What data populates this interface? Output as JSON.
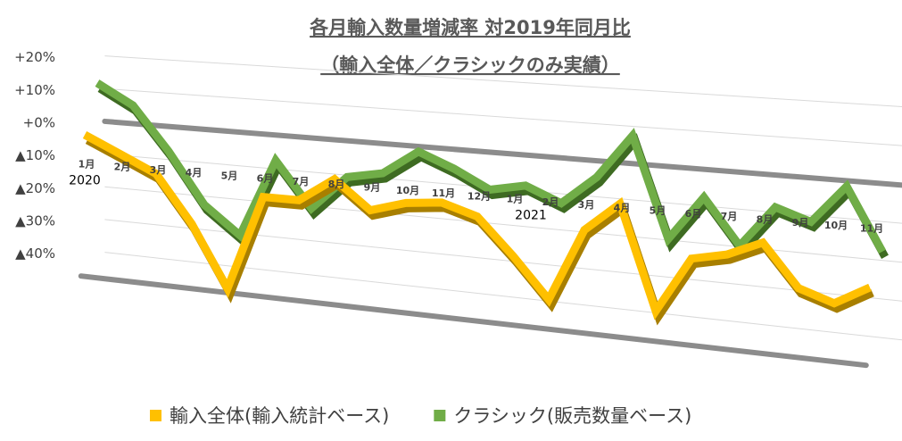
{
  "chart_data": {
    "type": "line3d",
    "title": "各月輸入数量増減率 対2019年同月比",
    "subtitle": "（輸入全体／クラシックのみ実績）",
    "categories": [
      "1月",
      "2月",
      "3月",
      "4月",
      "5月",
      "6月",
      "7月",
      "8月",
      "9月",
      "10月",
      "11月",
      "12月",
      "1月",
      "2月",
      "3月",
      "4月",
      "5月",
      "6月",
      "7月",
      "8月",
      "9月",
      "10月",
      "11月"
    ],
    "groups": [
      {
        "label": "2020",
        "count": 12
      },
      {
        "label": "2021",
        "count": 11
      }
    ],
    "series": [
      {
        "name": "輸入全体(輸入統計ベース)",
        "color": "#FFC000",
        "shade": "#A87F00",
        "values": [
          2,
          -3,
          -8,
          -22,
          -40,
          -12,
          -12,
          -5,
          -13,
          -10,
          -9,
          -12,
          -22,
          -33,
          -13,
          -5,
          -33,
          -18,
          -16,
          -12,
          -23,
          -26,
          -21
        ]
      },
      {
        "name": "クラシック(販売数量ベース)",
        "color": "#70AD47",
        "shade": "#3E6B22",
        "values": [
          14,
          8,
          -5,
          -20,
          -28,
          -5,
          -18,
          -8,
          -6,
          1,
          -3,
          -8,
          -6,
          -10,
          -2,
          10,
          -17,
          -5,
          -17,
          -6,
          -9,
          1,
          -15
        ]
      }
    ],
    "ylim": [
      -40,
      20
    ],
    "yticks": [
      {
        "value": 20,
        "label": "+20%"
      },
      {
        "value": 10,
        "label": "+10%"
      },
      {
        "value": 0,
        "label": "+0%"
      },
      {
        "value": -10,
        "label": "▲10%"
      },
      {
        "value": -20,
        "label": "▲20%"
      },
      {
        "value": -30,
        "label": "▲30%"
      },
      {
        "value": -40,
        "label": "▲40%"
      }
    ],
    "grid": true,
    "legend": "bottom"
  }
}
